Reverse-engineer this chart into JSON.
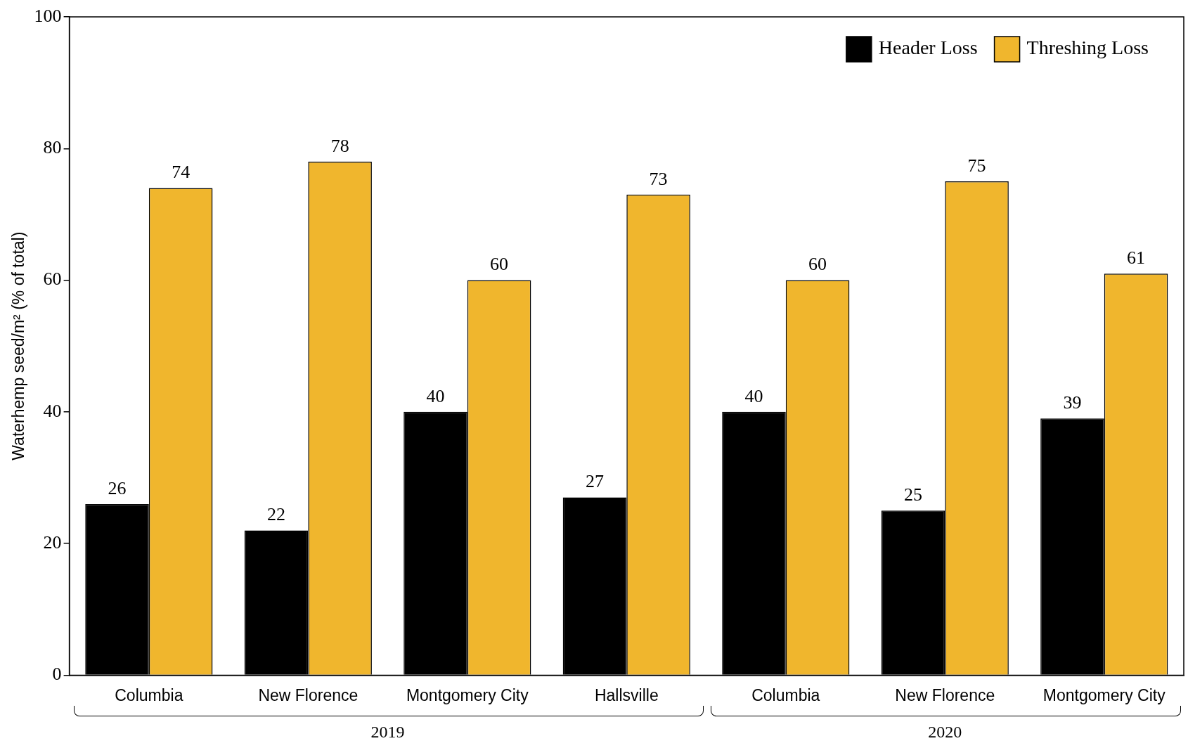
{
  "chart_data": {
    "type": "bar",
    "ylabel": "Waterhemp seed/m² (% of total)",
    "categories": [
      "Columbia",
      "New Florence",
      "Montgomery City",
      "Hallsville",
      "Columbia",
      "New Florence",
      "Montgomery City"
    ],
    "series": [
      {
        "name": "Header Loss",
        "color": "#000000",
        "values": [
          26,
          22,
          40,
          27,
          40,
          25,
          39
        ]
      },
      {
        "name": "Threshing Loss",
        "color": "#f0b62d",
        "values": [
          74,
          78,
          60,
          73,
          60,
          75,
          61
        ]
      }
    ],
    "ylim": [
      0,
      100
    ],
    "yticks": [
      0,
      20,
      40,
      60,
      80,
      100
    ],
    "data_labels": true,
    "legend": "top right",
    "annotations": [
      "2019",
      "2020"
    ]
  }
}
